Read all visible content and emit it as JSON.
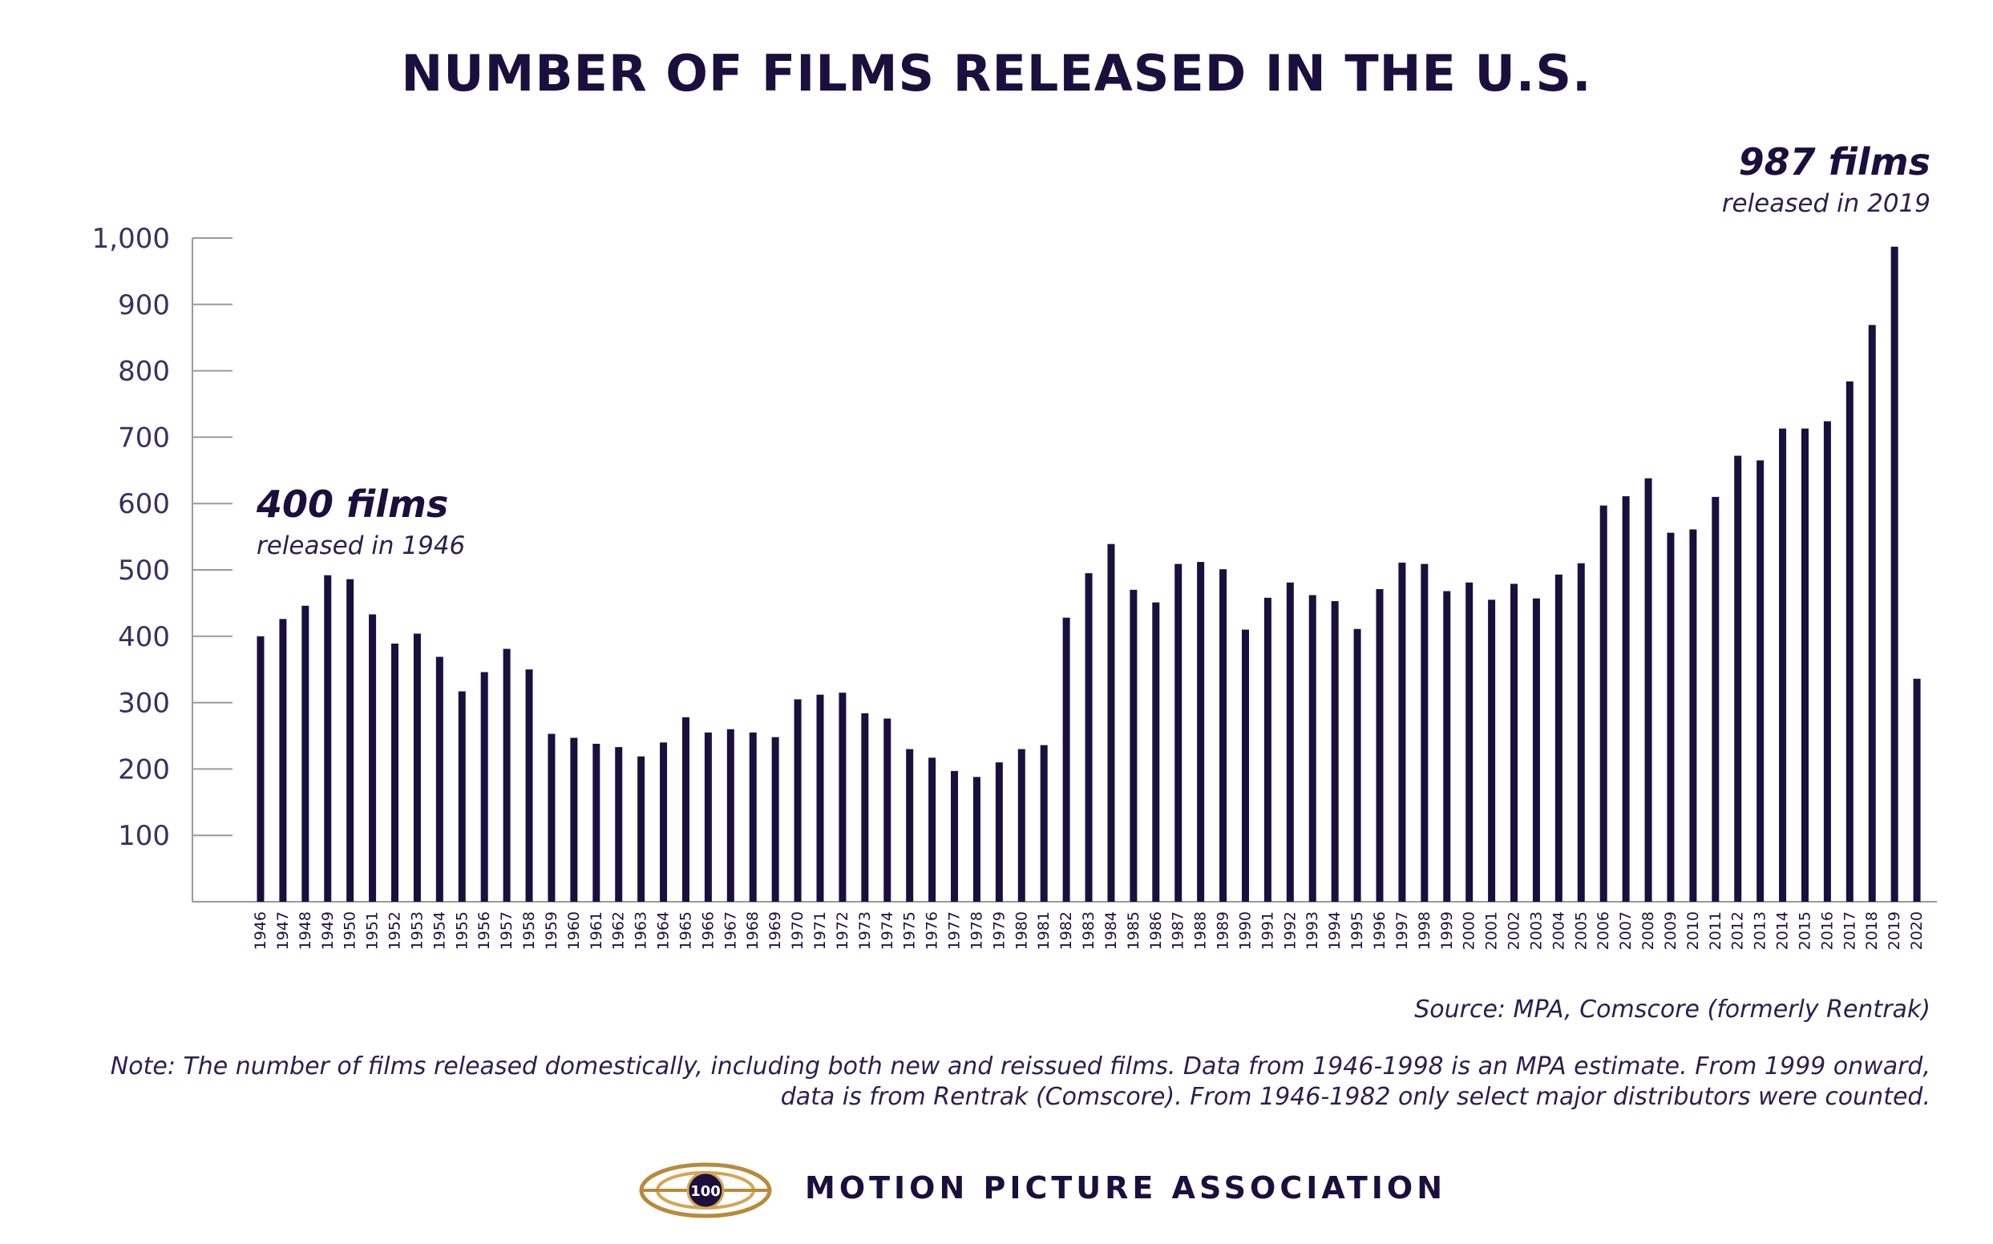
{
  "page": {
    "title": "NUMBER OF FILMS RELEASED IN THE U.S.",
    "source": "Source: MPA, Comscore (formerly Rentrak)",
    "note": "Note: The number of films released domestically, including both new and reissued films. Data from 1946-1998 is an MPA estimate. From 1999 onward, data is from Rentrak (Comscore). From 1946-1982 only select major distributors were counted.",
    "organization": "MOTION PICTURE ASSOCIATION",
    "logo_text": "100",
    "colors": {
      "bar": "#1b0f3e",
      "text": "#1b0f3e",
      "axis": "#9a9a9a",
      "logo_gold": "#b88a3a"
    }
  },
  "chart_data": {
    "type": "bar",
    "title": "NUMBER OF FILMS RELEASED IN THE U.S.",
    "xlabel": "",
    "ylabel": "",
    "ylim": [
      0,
      1000
    ],
    "yticks": [
      100,
      200,
      300,
      400,
      500,
      600,
      700,
      800,
      900,
      1000
    ],
    "ytick_labels": [
      "100",
      "200",
      "300",
      "400",
      "500",
      "600",
      "700",
      "800",
      "900",
      "1,000"
    ],
    "grid": false,
    "categories": [
      "1946",
      "1947",
      "1948",
      "1949",
      "1950",
      "1951",
      "1952",
      "1953",
      "1954",
      "1955",
      "1956",
      "1957",
      "1958",
      "1959",
      "1960",
      "1961",
      "1962",
      "1963",
      "1964",
      "1965",
      "1966",
      "1967",
      "1968",
      "1969",
      "1970",
      "1971",
      "1972",
      "1973",
      "1974",
      "1975",
      "1976",
      "1977",
      "1978",
      "1979",
      "1980",
      "1981",
      "1982",
      "1983",
      "1984",
      "1985",
      "1986",
      "1987",
      "1988",
      "1989",
      "1990",
      "1991",
      "1992",
      "1993",
      "1994",
      "1995",
      "1996",
      "1997",
      "1998",
      "1999",
      "2000",
      "2001",
      "2002",
      "2003",
      "2004",
      "2005",
      "2006",
      "2007",
      "2008",
      "2009",
      "2010",
      "2011",
      "2012",
      "2013",
      "2014",
      "2015",
      "2016",
      "2017",
      "2018",
      "2019",
      "2020"
    ],
    "values": [
      400,
      426,
      446,
      492,
      486,
      433,
      389,
      404,
      369,
      317,
      346,
      381,
      350,
      253,
      247,
      238,
      233,
      219,
      240,
      278,
      255,
      260,
      255,
      248,
      305,
      312,
      315,
      284,
      276,
      230,
      217,
      197,
      188,
      210,
      230,
      236,
      428,
      495,
      539,
      470,
      451,
      509,
      512,
      501,
      410,
      458,
      481,
      462,
      453,
      411,
      471,
      511,
      509,
      468,
      481,
      455,
      479,
      457,
      493,
      510,
      597,
      611,
      638,
      556,
      561,
      610,
      672,
      665,
      713,
      713,
      724,
      784,
      869,
      987,
      336
    ],
    "annotations": [
      {
        "headline": "400 films",
        "subtext": "released in 1946"
      },
      {
        "headline": "987 films",
        "subtext": "released in 2019"
      }
    ]
  }
}
